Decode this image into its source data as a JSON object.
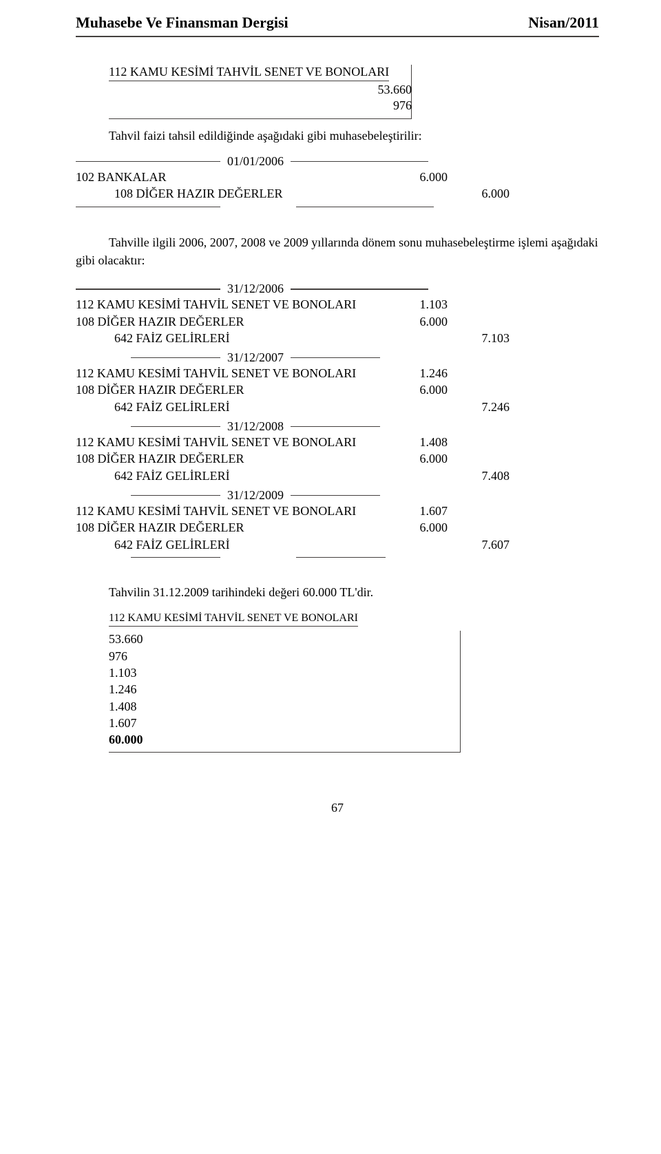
{
  "header": {
    "left": "Muhasebe Ve Finansman Dergisi",
    "right": "Nisan/2011"
  },
  "first_account": {
    "title": "112 KAMU KESİMİ TAHVİL  SENET VE BONOLARI",
    "line1": "53.660",
    "line2": "976"
  },
  "intro_text": "Tahvil faizi tahsil edildiğinde aşağıdaki gibi muhasebeleştirilir:",
  "first_journal": {
    "date": "01/01/2006",
    "rows": [
      {
        "desc": "102 BANKALAR",
        "pad": "pad1",
        "c1": "6.000",
        "c2": ""
      },
      {
        "desc": "108 DİĞER HAZIR DEĞERLER",
        "pad": "pad2",
        "c1": "",
        "c2": "6.000"
      }
    ]
  },
  "mid_text": "Tahville ilgili 2006, 2007, 2008 ve 2009 yıllarında dönem sonu muhasebeleştirme işlemi aşağıdaki gibi olacaktır:",
  "journals": [
    {
      "date": "31/12/2006",
      "rows": [
        {
          "desc": "112 KAMU KESİMİ TAHVİL SENET VE BONOLARI",
          "pad": "pad1",
          "c1": "1.103",
          "c2": ""
        },
        {
          "desc": "108 DİĞER HAZIR DEĞERLER",
          "pad": "pad1",
          "c1": "6.000",
          "c2": ""
        },
        {
          "desc": "642 FAİZ GELİRLERİ",
          "pad": "pad2",
          "c1": "",
          "c2": "7.103"
        }
      ]
    },
    {
      "date": "31/12/2007",
      "rows": [
        {
          "desc": "112 KAMU KESİMİ TAHVİL SENET VE BONOLARI",
          "pad": "pad1",
          "c1": "1.246",
          "c2": ""
        },
        {
          "desc": "108 DİĞER HAZIR DEĞERLER",
          "pad": "pad1",
          "c1": "6.000",
          "c2": ""
        },
        {
          "desc": "642 FAİZ GELİRLERİ",
          "pad": "pad2",
          "c1": "",
          "c2": "7.246"
        }
      ]
    },
    {
      "date": "31/12/2008",
      "rows": [
        {
          "desc": "112 KAMU KESİMİ TAHVİL SENET VE BONOLARI",
          "pad": "pad1",
          "c1": "1.408",
          "c2": ""
        },
        {
          "desc": "108 DİĞER HAZIR DEĞERLER",
          "pad": "pad1",
          "c1": "6.000",
          "c2": ""
        },
        {
          "desc": "642 FAİZ GELİRLERİ",
          "pad": "pad2",
          "c1": "",
          "c2": "7.408"
        }
      ]
    },
    {
      "date": "31/12/2009",
      "rows": [
        {
          "desc": "112 KAMU KESİMİ TAHVİL SENET VE BONOLARI",
          "pad": "pad1",
          "c1": "1.607",
          "c2": ""
        },
        {
          "desc": "108 DİĞER HAZIR DEĞERLER",
          "pad": "pad1",
          "c1": "6.000",
          "c2": ""
        },
        {
          "desc": "642 FAİZ GELİRLERİ",
          "pad": "pad2",
          "c1": "",
          "c2": "7.607"
        }
      ]
    }
  ],
  "final_text": "Tahvilin 31.12.2009 tarihindeki değeri 60.000 TL'dir.",
  "final_account": {
    "title": "112 KAMU KESİMİ TAHVİL  SENET VE BONOLARI",
    "values": [
      "53.660",
      "976",
      "1.103",
      "1.246",
      "1.408",
      "1.607"
    ],
    "total": "60.000"
  },
  "page_number": "67"
}
